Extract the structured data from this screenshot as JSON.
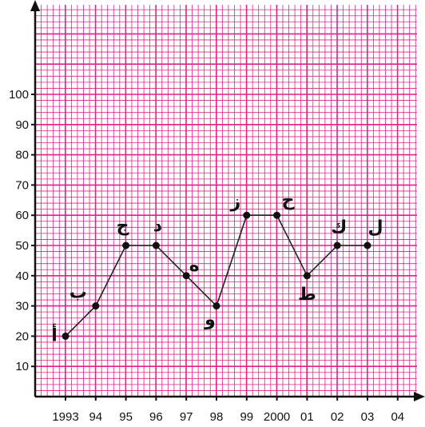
{
  "chart_data": {
    "type": "line",
    "title": "",
    "xlabel": "",
    "ylabel": "",
    "x": [
      "1993",
      "94",
      "95",
      "96",
      "97",
      "98",
      "99",
      "2000",
      "01",
      "02",
      "03"
    ],
    "values": [
      20,
      30,
      50,
      50,
      40,
      30,
      60,
      60,
      40,
      50,
      50
    ],
    "point_labels": [
      "أ",
      "ب",
      "ج",
      "د",
      "ه",
      "و",
      "ز",
      "ح",
      "ط",
      "ك",
      "ل"
    ],
    "x_tick_labels": [
      "1993",
      "94",
      "95",
      "96",
      "97",
      "98",
      "99",
      "2000",
      "01",
      "02",
      "03",
      "04"
    ],
    "y_tick_labels": [
      "10",
      "20",
      "30",
      "40",
      "50",
      "60",
      "70",
      "80",
      "90",
      "100"
    ],
    "ylim": [
      0,
      130
    ],
    "grid": true,
    "colors": {
      "grid": "#e0218a",
      "line": "#222222",
      "point": "#111111",
      "axis": "#111111"
    }
  }
}
